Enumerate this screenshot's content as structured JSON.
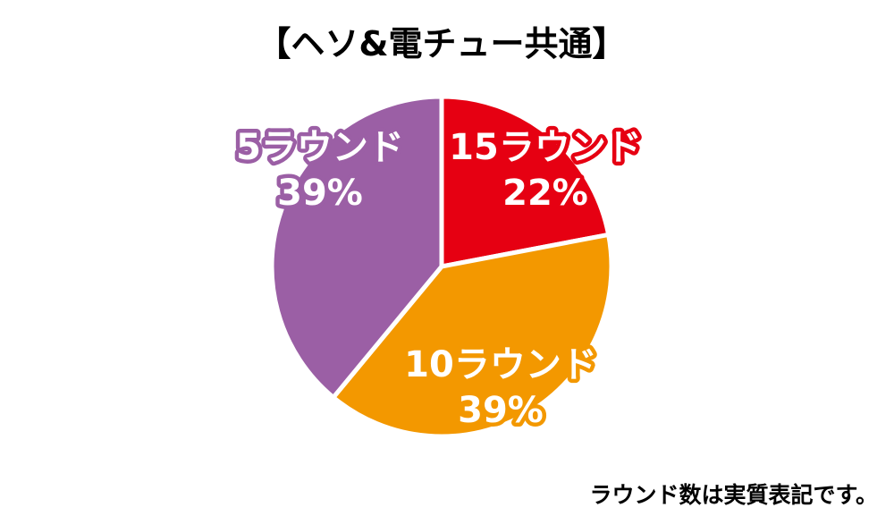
{
  "chart_data": {
    "type": "pie",
    "title": "【ヘソ&電チュー共通】",
    "slices": [
      {
        "name": "15ラウンド",
        "value": 22,
        "label": "22%",
        "color": "#e60012"
      },
      {
        "name": "10ラウンド",
        "value": 39,
        "label": "39%",
        "color": "#f39800"
      },
      {
        "name": "5ラウンド",
        "value": 39,
        "label": "39%",
        "color": "#9b5fa5"
      }
    ],
    "start_angle": "12 o'clock",
    "direction": "clockwise",
    "legend": "none",
    "note": "ラウンド数は実質表記です。"
  }
}
